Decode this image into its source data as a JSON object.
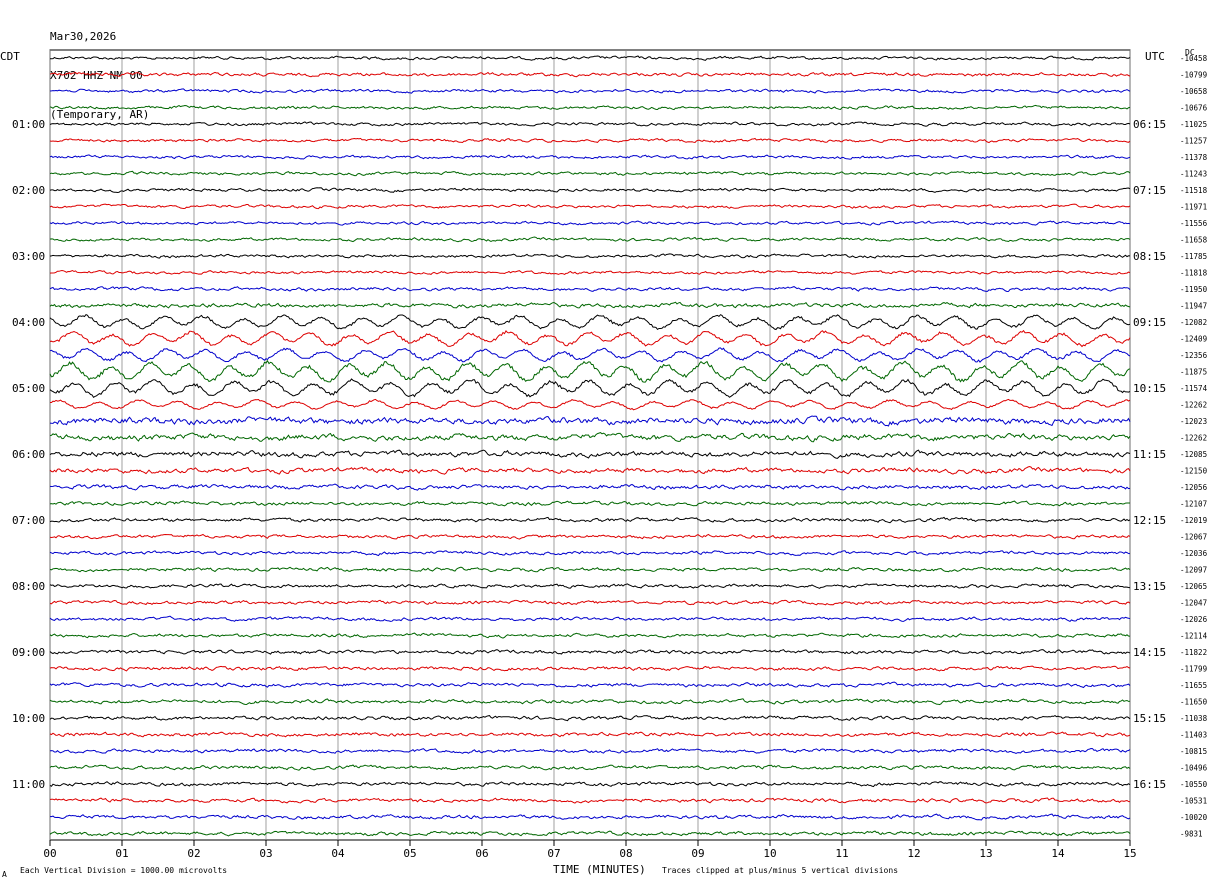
{
  "header": {
    "date": "Mar30,2026",
    "station": "X702 HHZ NM 00",
    "network": "(Temporary, AR)"
  },
  "left_tz": "CDT",
  "right_tz": "UTC",
  "dc_label": "DC",
  "footer": {
    "scale": "Each Vertical Division = 1000.00 microvolts",
    "clip": "Traces clipped at plus/minus 5 vertical divisions",
    "mark": "A"
  },
  "chart_data": {
    "type": "line",
    "title": "",
    "xlabel": "TIME (MINUTES)",
    "ylabel": "",
    "xlim": [
      0,
      15
    ],
    "x_ticks": [
      "00",
      "01",
      "02",
      "03",
      "04",
      "05",
      "06",
      "07",
      "08",
      "09",
      "10",
      "11",
      "12",
      "13",
      "14",
      "15"
    ],
    "grid": true,
    "trace_count": 48,
    "trace_minutes": 15,
    "trace_colors": [
      "#000000",
      "#dd0000",
      "#0000cc",
      "#006600"
    ],
    "left_hour_labels": [
      {
        "trace": 4,
        "label": "01:00"
      },
      {
        "trace": 8,
        "label": "02:00"
      },
      {
        "trace": 12,
        "label": "03:00"
      },
      {
        "trace": 16,
        "label": "04:00"
      },
      {
        "trace": 20,
        "label": "05:00"
      },
      {
        "trace": 24,
        "label": "06:00"
      },
      {
        "trace": 28,
        "label": "07:00"
      },
      {
        "trace": 32,
        "label": "08:00"
      },
      {
        "trace": 36,
        "label": "09:00"
      },
      {
        "trace": 40,
        "label": "10:00"
      },
      {
        "trace": 44,
        "label": "11:00"
      }
    ],
    "right_hour_labels": [
      {
        "trace": 4,
        "label": "06:15"
      },
      {
        "trace": 8,
        "label": "07:15"
      },
      {
        "trace": 12,
        "label": "08:15"
      },
      {
        "trace": 16,
        "label": "09:15"
      },
      {
        "trace": 20,
        "label": "10:15"
      },
      {
        "trace": 24,
        "label": "11:15"
      },
      {
        "trace": 28,
        "label": "12:15"
      },
      {
        "trace": 32,
        "label": "13:15"
      },
      {
        "trace": 36,
        "label": "14:15"
      },
      {
        "trace": 40,
        "label": "15:15"
      },
      {
        "trace": 44,
        "label": "16:15"
      }
    ],
    "dc_values": [
      "-10458",
      "-10799",
      "-10658",
      "-10676",
      "-11025",
      "-11257",
      "-11378",
      "-11243",
      "-11518",
      "-11971",
      "-11556",
      "-11658",
      "-11785",
      "-11818",
      "-11950",
      "-11947",
      "-12082",
      "-12409",
      "-12356",
      "-11875",
      "-11574",
      "-12262",
      "-12023",
      "-12262",
      "-12085",
      "-12150",
      "-12056",
      "-12107",
      "-12019",
      "-12067",
      "-12036",
      "-12097",
      "-12065",
      "-12047",
      "-12026",
      "-12114",
      "-11822",
      "-11799",
      "-11655",
      "-11650",
      "-11038",
      "-11403",
      "-10815",
      "-10496",
      "-10550",
      "-10531",
      "-10020",
      "-9831"
    ],
    "amplitude_profile": [
      0.25,
      0.28,
      0.25,
      0.25,
      0.25,
      0.25,
      0.25,
      0.25,
      0.25,
      0.25,
      0.25,
      0.25,
      0.25,
      0.25,
      0.28,
      0.35,
      0.95,
      1.0,
      0.9,
      1.35,
      1.15,
      0.65,
      0.55,
      0.5,
      0.45,
      0.4,
      0.35,
      0.3,
      0.3,
      0.28,
      0.28,
      0.28,
      0.28,
      0.28,
      0.28,
      0.28,
      0.3,
      0.3,
      0.3,
      0.3,
      0.3,
      0.3,
      0.3,
      0.3,
      0.3,
      0.3,
      0.3,
      0.3
    ]
  }
}
